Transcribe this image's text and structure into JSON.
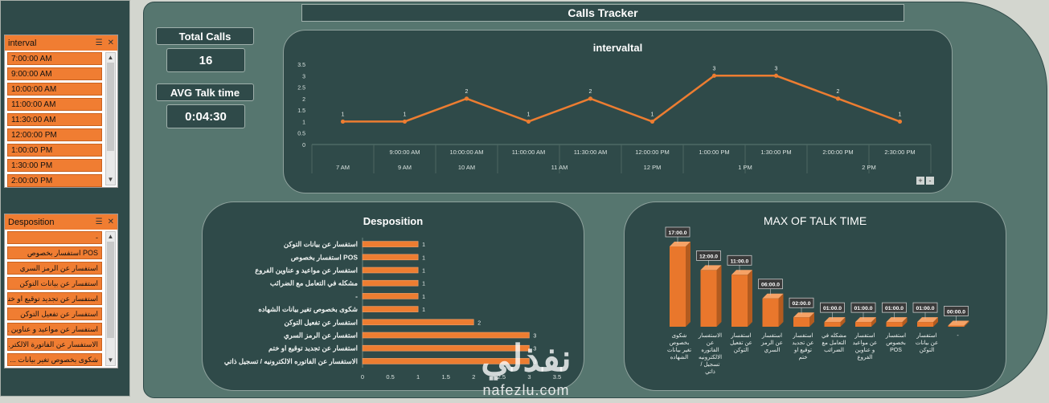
{
  "title": "Calls Tracker",
  "kpis": {
    "total_calls_label": "Total Calls",
    "total_calls_value": "16",
    "avg_talk_label": "AVG Talk time",
    "avg_talk_value": "0:04:30"
  },
  "slicer_interval": {
    "title": "interval",
    "items": [
      "7:00:00 AM",
      "9:00:00 AM",
      "10:00:00 AM",
      "11:00:00 AM",
      "11:30:00 AM",
      "12:00:00 PM",
      "1:00:00 PM",
      "1:30:00 PM",
      "2:00:00 PM"
    ]
  },
  "slicer_desposition": {
    "title": "Desposition",
    "items": [
      "-",
      "POS استفسار بخصوص",
      "استفسار عن الرمز السري",
      "استفسار عن بيانات التوكن",
      "استفسار عن تجديد توقيع او ختم",
      "استفسار عن تفعيل التوكن",
      "استفسار عن مواعيد و عناوين ...",
      "الاستفسار عن الفاتورة الالكتر...",
      "شكوى بخصوص تغير بيانات ..."
    ]
  },
  "icons": {
    "multi_select": "multi-select-icon",
    "clear_filter": "clear-filter-icon",
    "scroll_up": "chevron-up-icon",
    "scroll_down": "chevron-down-icon"
  },
  "colors": {
    "orange": "#f07d32",
    "panel": "#2f4a49",
    "background": "#56766f",
    "line": "#ed7d31"
  },
  "chart_data": [
    {
      "type": "line",
      "title": "intervaltal",
      "x": [
        "",
        "9:00:00 AM",
        "10:00:00 AM",
        "11:00:00 AM",
        "11:30:00 AM",
        "12:00:00 PM",
        "1:00:00 PM",
        "1:30:00 PM",
        "2:00:00 PM",
        "2:30:00 PM"
      ],
      "groups": [
        {
          "label": "7 AM",
          "span": 1
        },
        {
          "label": "9 AM",
          "span": 1
        },
        {
          "label": "10 AM",
          "span": 1
        },
        {
          "label": "11 AM",
          "span": 2
        },
        {
          "label": "12 PM",
          "span": 1
        },
        {
          "label": "1 PM",
          "span": 2
        },
        {
          "label": "2 PM",
          "span": 2
        }
      ],
      "values": [
        1,
        1,
        2,
        1,
        2,
        1,
        3,
        3,
        2,
        1
      ],
      "yticks": [
        "0",
        "0.5",
        "1",
        "1.5",
        "2",
        "2.5",
        "3",
        "3.5"
      ],
      "ylim": [
        0,
        3.5
      ],
      "grid": false,
      "data_labels": true
    },
    {
      "type": "bar",
      "orientation": "horizontal",
      "title": "Desposition",
      "categories": [
        "استفسار عن بيانات التوكن",
        "استفسار بخصوص POS",
        "استفسار عن مواعيد و عناوين الفروع",
        "مشكله في التعامل مع الضرائب",
        "-",
        "شكوى بخصوص تغير بيانات الشهاده",
        "استفسار عن تفعيل التوكن",
        "استفسار عن الرمز السري",
        "استفسار عن تجديد توقيع او ختم",
        "الاستفسار عن الفاتوره الالكترونيه / تسجيل ذاتي"
      ],
      "values": [
        1,
        1,
        1,
        1,
        1,
        1,
        2,
        3,
        3,
        3
      ],
      "xticks": [
        "0",
        "0.5",
        "1",
        "1.5",
        "2",
        "2.5",
        "3",
        "3.5"
      ],
      "xlim": [
        0,
        3.5
      ],
      "data_labels": true
    },
    {
      "type": "bar",
      "title": "MAX OF TALK TIME",
      "categories": [
        [
          "شكوى",
          "بخصوص",
          "تغير بيانات",
          "الشهاده"
        ],
        [
          "الاستفسار",
          "عن",
          "الفاتوره",
          "الالكترونيه",
          "/ تسجيل",
          "ذاتي"
        ],
        [
          "استفسار",
          "عن تفعيل",
          "التوكن"
        ],
        [
          "استفسار",
          "عن الرمز",
          "السري"
        ],
        [
          "استفسار",
          "عن تجديد",
          "توقيع او",
          "ختم"
        ],
        [
          "مشكله في",
          "التعامل مع",
          "الضرائب"
        ],
        [
          "استفسار",
          "عن مواعيد",
          "و عناوين",
          "الفروع"
        ],
        [
          "استفسار",
          "بخصوص",
          "POS"
        ],
        [
          "استفسار",
          "عن بيانات",
          "التوكن"
        ],
        [
          "-"
        ]
      ],
      "values": [
        17,
        12,
        11,
        6,
        2,
        1,
        1,
        1,
        1,
        0
      ],
      "data_labels": [
        "17:00.0",
        "12:00.0",
        "11:00.0",
        "06:00.0",
        "02:00.0",
        "01:00.0",
        "01:00.0",
        "01:00.0",
        "01:00.0",
        "00:00.0"
      ],
      "ylim": [
        0,
        17
      ],
      "style": "3d-column"
    }
  ],
  "watermark": {
    "arabic": "نفذلي",
    "latin": "nafezlu.com"
  },
  "chart_controls": {
    "expand": "+",
    "collapse": "-"
  }
}
